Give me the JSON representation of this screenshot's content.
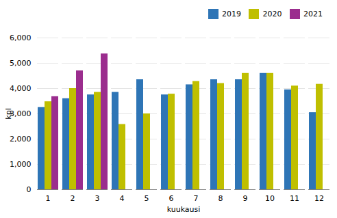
{
  "chart_data": {
    "type": "bar",
    "xlabel": "kuukausi",
    "ylabel": "kpl",
    "categories": [
      "1",
      "2",
      "3",
      "4",
      "5",
      "6",
      "7",
      "8",
      "9",
      "10",
      "11",
      "12"
    ],
    "series": [
      {
        "name": "2019",
        "color": "#2E75B6",
        "values": [
          3250,
          3600,
          3750,
          3850,
          4350,
          3750,
          4150,
          4350,
          4350,
          4600,
          3950,
          3050
        ]
      },
      {
        "name": "2020",
        "color": "#BFBF00",
        "values": [
          3480,
          4000,
          3850,
          2580,
          3000,
          3780,
          4280,
          4200,
          4600,
          4600,
          4100,
          4170
        ]
      },
      {
        "name": "2021",
        "color": "#9B2D8E",
        "values": [
          3680,
          4700,
          5370,
          null,
          null,
          null,
          null,
          null,
          null,
          null,
          null,
          null
        ]
      }
    ],
    "ylim": [
      0,
      6000
    ],
    "yticks": [
      0,
      1000,
      2000,
      3000,
      4000,
      5000,
      6000
    ],
    "grid": true,
    "legend": "upper right"
  }
}
